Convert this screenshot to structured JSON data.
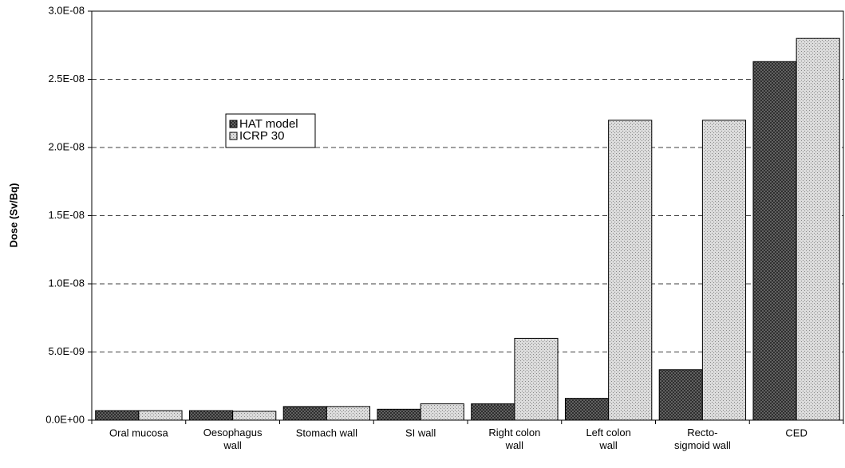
{
  "chart_data": {
    "type": "bar",
    "ylabel": "Dose (Sv/Bq)",
    "categories": [
      "Oral mucosa",
      "Oesophagus\nwall",
      "Stomach wall",
      "SI wall",
      "Right colon\nwall",
      "Left colon\nwall",
      "Recto-\nsigmoid wall",
      "CED"
    ],
    "series": [
      {
        "name": "HAT model",
        "color": "#6e6e6e",
        "values": [
          7e-10,
          7e-10,
          1e-09,
          8e-10,
          1.2e-09,
          1.6e-09,
          3.7e-09,
          2.63e-08
        ]
      },
      {
        "name": "ICRP 30",
        "color": "#dcdcdc",
        "values": [
          7e-10,
          6.5e-10,
          1e-09,
          1.2e-09,
          6e-09,
          2.2e-08,
          2.2e-08,
          2.8e-08
        ]
      }
    ],
    "ylim": [
      0,
      3e-08
    ],
    "yticks": [
      {
        "value": 0,
        "label": "0.0E+00"
      },
      {
        "value": 5e-09,
        "label": "5.0E-09"
      },
      {
        "value": 1e-08,
        "label": "1.0E-08"
      },
      {
        "value": 1.5e-08,
        "label": "1.5E-08"
      },
      {
        "value": 2e-08,
        "label": "2.0E-08"
      },
      {
        "value": 2.5e-08,
        "label": "2.5E-08"
      },
      {
        "value": 3e-08,
        "label": "3.0E-08"
      }
    ],
    "grid": true,
    "legend": "upper left"
  }
}
